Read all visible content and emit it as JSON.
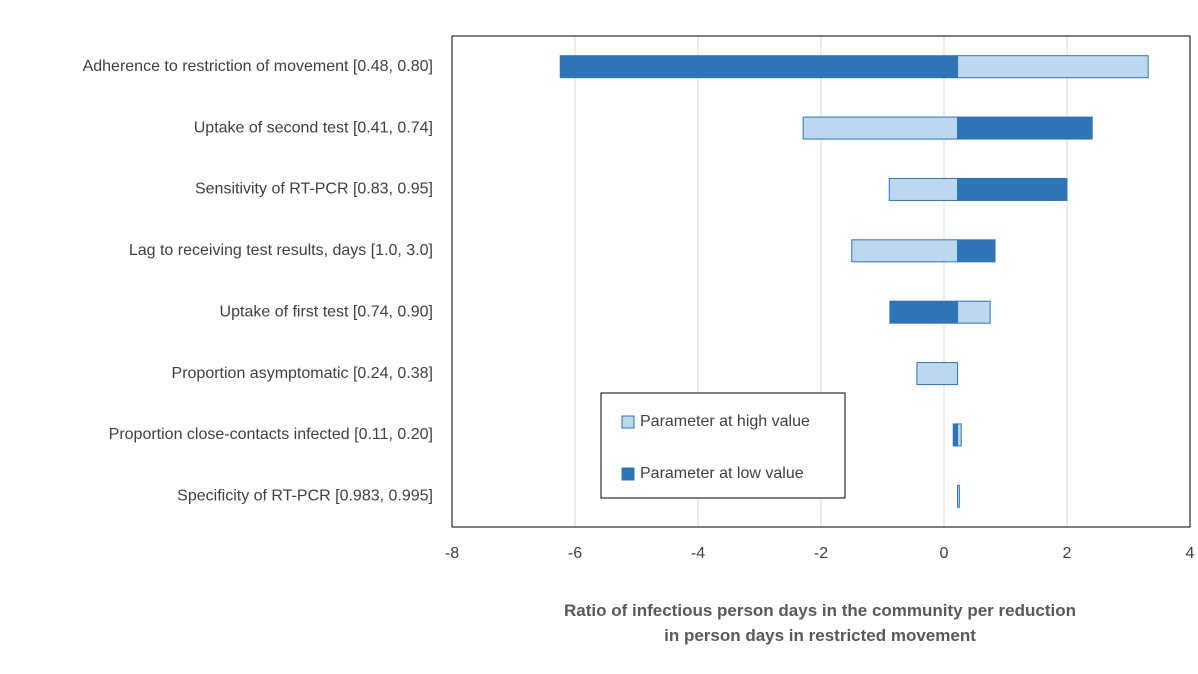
{
  "chart_data": {
    "type": "tornado",
    "x_label": "Ratio of infectious person days in the community per reduction in person days in restricted movement",
    "categories": [
      "Adherence to restriction of movement [0.48, 0.80]",
      "Uptake of second test [0.41, 0.74]",
      "Sensitivity of RT-PCR [0.83, 0.95]",
      "Lag to receiving test results, days [1.0, 3.0]",
      "Uptake of first test [0.74, 0.90]",
      "Proportion asymptomatic [0.24, 0.38]",
      "Proportion close-contacts infected [0.11, 0.20]",
      "Specificity of RT-PCR [0.983, 0.995]"
    ],
    "base": 0.22,
    "series": [
      {
        "name": "Parameter at high value",
        "color": "#bdd7ee",
        "values": [
          3.32,
          -2.29,
          -0.89,
          -1.5,
          0.75,
          -0.44,
          0.28,
          0.25
        ]
      },
      {
        "name": "Parameter at low value",
        "color": "#2e75b6",
        "values": [
          -6.24,
          2.41,
          2.0,
          0.83,
          -0.88,
          0.22,
          0.15,
          0.22
        ]
      }
    ],
    "xlim": [
      -8,
      4
    ],
    "xticks": [
      -8,
      -6,
      -4,
      -2,
      0,
      2,
      4
    ],
    "grid": true
  }
}
